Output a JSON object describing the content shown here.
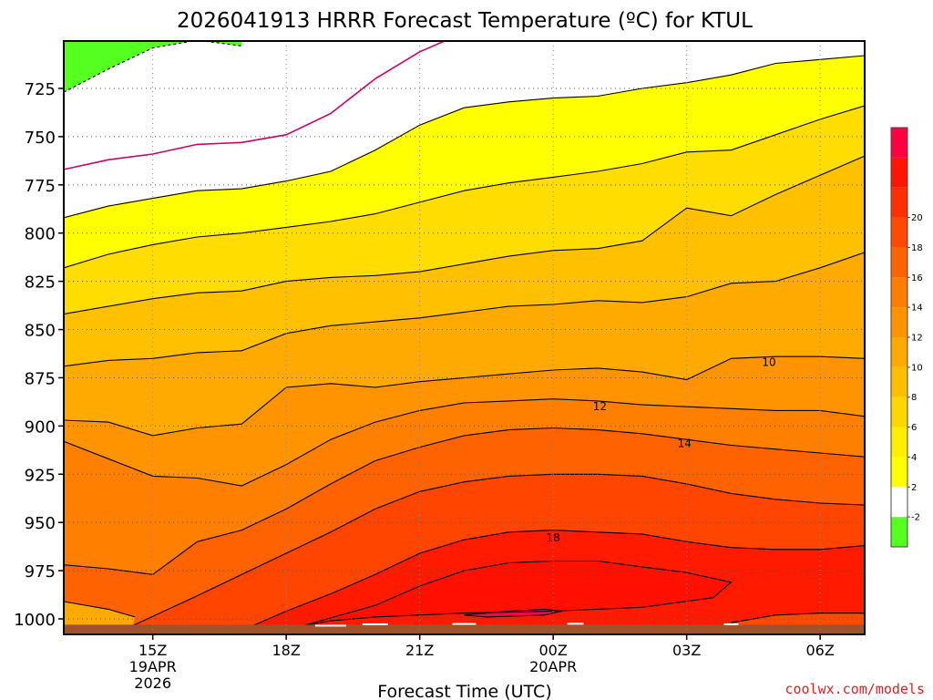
{
  "chart_data": {
    "type": "heatmap",
    "title": "2026041913 HRRR Forecast Temperature (ºC) for KTUL",
    "xlabel": "Forecast Time (UTC)",
    "ylabel": "",
    "credit": "coolwx.com/models",
    "y_axis_reversed": true,
    "x_ticks": [
      {
        "hour": 15,
        "lines": [
          "15Z",
          "19APR",
          "2026"
        ]
      },
      {
        "hour": 18,
        "lines": [
          "18Z"
        ]
      },
      {
        "hour": 21,
        "lines": [
          "21Z"
        ]
      },
      {
        "hour": 24,
        "lines": [
          "00Z",
          "20APR"
        ]
      },
      {
        "hour": 27,
        "lines": [
          "03Z"
        ]
      },
      {
        "hour": 30,
        "lines": [
          "06Z"
        ]
      }
    ],
    "y_ticks": [
      725,
      750,
      775,
      800,
      825,
      850,
      875,
      900,
      925,
      950,
      975,
      1000
    ],
    "grid": true,
    "colorbar": {
      "bands": [
        {
          "color": "#55ff20"
        },
        {
          "color": "#ffffff"
        },
        {
          "color": "#ffff00"
        },
        {
          "color": "#ffee00"
        },
        {
          "color": "#ffd700"
        },
        {
          "color": "#ffbf00"
        },
        {
          "color": "#ffaa00"
        },
        {
          "color": "#ff9400"
        },
        {
          "color": "#ff7d00"
        },
        {
          "color": "#ff6300"
        },
        {
          "color": "#ff4a00"
        },
        {
          "color": "#ff3000"
        },
        {
          "color": "#ff1500"
        },
        {
          "color": "#ff0040"
        }
      ],
      "labels": [
        "-2",
        "2",
        "4",
        "6",
        "8",
        "10",
        "12",
        "14",
        "16",
        "18",
        "20"
      ]
    },
    "isotherms": [
      {
        "temp": -2,
        "color": "#000000",
        "dashed": true,
        "points": [
          [
            13,
            727
          ],
          [
            14,
            715
          ],
          [
            15,
            704
          ],
          [
            16,
            700
          ],
          [
            17,
            703
          ]
        ]
      },
      {
        "temp": 0,
        "color": "#cc0066",
        "points": [
          [
            13,
            767
          ],
          [
            14,
            762
          ],
          [
            15,
            759
          ],
          [
            16,
            754
          ],
          [
            17,
            753
          ],
          [
            18,
            749
          ],
          [
            19,
            738
          ],
          [
            20,
            720
          ],
          [
            21,
            706
          ],
          [
            22,
            696
          ],
          [
            23,
            690
          ],
          [
            24,
            689
          ]
        ]
      },
      {
        "temp": 2,
        "color": "#000000",
        "points": [
          [
            13,
            792
          ],
          [
            14,
            786
          ],
          [
            15,
            782
          ],
          [
            16,
            778
          ],
          [
            17,
            777
          ],
          [
            18,
            773
          ],
          [
            19,
            768
          ],
          [
            20,
            757
          ],
          [
            21,
            744
          ],
          [
            22,
            735
          ],
          [
            23,
            732
          ],
          [
            24,
            730
          ],
          [
            25,
            729
          ],
          [
            26,
            725
          ],
          [
            27,
            722
          ],
          [
            28,
            718
          ],
          [
            29,
            712
          ],
          [
            30,
            710
          ],
          [
            31,
            708
          ]
        ]
      },
      {
        "temp": 4,
        "color": "#000000",
        "points": [
          [
            13,
            818
          ],
          [
            14,
            811
          ],
          [
            15,
            806
          ],
          [
            16,
            802
          ],
          [
            17,
            800
          ],
          [
            18,
            797
          ],
          [
            19,
            794
          ],
          [
            20,
            790
          ],
          [
            21,
            784
          ],
          [
            22,
            778
          ],
          [
            23,
            774
          ],
          [
            24,
            771
          ],
          [
            25,
            768
          ],
          [
            26,
            764
          ],
          [
            27,
            758
          ],
          [
            28,
            757
          ],
          [
            29,
            749
          ],
          [
            30,
            741
          ],
          [
            31,
            734
          ]
        ]
      },
      {
        "temp": 6,
        "color": "#000000",
        "points": [
          [
            13,
            842
          ],
          [
            14,
            838
          ],
          [
            15,
            834
          ],
          [
            16,
            831
          ],
          [
            17,
            830
          ],
          [
            18,
            825
          ],
          [
            19,
            823
          ],
          [
            20,
            822
          ],
          [
            21,
            820
          ],
          [
            22,
            816
          ],
          [
            23,
            812
          ],
          [
            24,
            809
          ],
          [
            25,
            808
          ],
          [
            26,
            804
          ],
          [
            27,
            787
          ],
          [
            28,
            791
          ],
          [
            29,
            780
          ],
          [
            30,
            770
          ],
          [
            31,
            760
          ]
        ]
      },
      {
        "temp": 8,
        "color": "#000000",
        "points": [
          [
            13,
            869
          ],
          [
            14,
            866
          ],
          [
            15,
            865
          ],
          [
            16,
            862
          ],
          [
            17,
            861
          ],
          [
            18,
            852
          ],
          [
            19,
            848
          ],
          [
            20,
            846
          ],
          [
            21,
            844
          ],
          [
            22,
            841
          ],
          [
            23,
            838
          ],
          [
            24,
            837
          ],
          [
            25,
            835
          ],
          [
            26,
            836
          ],
          [
            27,
            833
          ],
          [
            28,
            826
          ],
          [
            29,
            825
          ],
          [
            30,
            818
          ],
          [
            31,
            810
          ]
        ]
      },
      {
        "temp": 10,
        "color": "#000000",
        "points": [
          [
            13,
            897
          ],
          [
            14,
            898
          ],
          [
            15,
            905
          ],
          [
            16,
            901
          ],
          [
            17,
            899
          ],
          [
            18,
            880
          ],
          [
            19,
            878
          ],
          [
            20,
            880
          ],
          [
            21,
            877
          ],
          [
            22,
            875
          ],
          [
            23,
            873
          ],
          [
            24,
            871
          ],
          [
            25,
            870
          ],
          [
            26,
            872
          ],
          [
            27,
            876
          ],
          [
            28,
            865
          ],
          [
            29,
            864
          ],
          [
            30,
            864
          ],
          [
            31,
            865
          ]
        ]
      },
      {
        "temp": 12,
        "color": "#000000",
        "points": [
          [
            13,
            908
          ],
          [
            14,
            917
          ],
          [
            15,
            926
          ],
          [
            16,
            927
          ],
          [
            17,
            931
          ],
          [
            18,
            920
          ],
          [
            19,
            907
          ],
          [
            20,
            898
          ],
          [
            21,
            892
          ],
          [
            22,
            888
          ],
          [
            23,
            887
          ],
          [
            24,
            886
          ],
          [
            25,
            887
          ],
          [
            26,
            889
          ],
          [
            27,
            890
          ],
          [
            28,
            891
          ],
          [
            29,
            892
          ],
          [
            30,
            892
          ],
          [
            31,
            895
          ]
        ]
      },
      {
        "temp": 14,
        "color": "#000000",
        "points": [
          [
            13,
            972
          ],
          [
            14,
            974
          ],
          [
            15,
            977
          ],
          [
            16,
            960
          ],
          [
            17,
            954
          ],
          [
            18,
            943
          ],
          [
            19,
            930
          ],
          [
            20,
            918
          ],
          [
            21,
            911
          ],
          [
            22,
            905
          ],
          [
            23,
            902
          ],
          [
            24,
            901
          ],
          [
            25,
            902
          ],
          [
            26,
            904
          ],
          [
            27,
            907
          ],
          [
            28,
            910
          ],
          [
            29,
            912
          ],
          [
            30,
            914
          ],
          [
            31,
            916
          ]
        ]
      },
      {
        "temp": 16,
        "color": "#000000",
        "points": [
          [
            14.5,
            1004
          ],
          [
            16,
            988
          ],
          [
            17,
            977
          ],
          [
            18,
            966
          ],
          [
            19,
            955
          ],
          [
            20,
            943
          ],
          [
            21,
            934
          ],
          [
            22,
            929
          ],
          [
            23,
            926
          ],
          [
            24,
            925
          ],
          [
            25,
            925
          ],
          [
            26,
            926
          ],
          [
            27,
            930
          ],
          [
            28,
            935
          ],
          [
            29,
            938
          ],
          [
            30,
            940
          ],
          [
            31,
            941
          ]
        ]
      },
      {
        "temp": 18,
        "color": "#000000",
        "points": [
          [
            17.2,
            1004
          ],
          [
            18,
            996
          ],
          [
            19,
            987
          ],
          [
            20,
            977
          ],
          [
            21,
            966
          ],
          [
            22,
            959
          ],
          [
            23,
            955
          ],
          [
            24,
            954
          ],
          [
            25,
            955
          ],
          [
            26,
            956
          ],
          [
            27,
            960
          ],
          [
            28,
            963
          ],
          [
            29,
            964
          ],
          [
            30,
            964
          ],
          [
            31,
            962
          ]
        ]
      },
      {
        "temp": 20,
        "color": "#000000",
        "closed": true,
        "points": [
          [
            18.3,
            1004
          ],
          [
            20,
            993
          ],
          [
            21,
            983
          ],
          [
            22,
            975
          ],
          [
            23,
            971
          ],
          [
            24,
            970
          ],
          [
            25,
            970
          ],
          [
            26,
            973
          ],
          [
            27,
            976
          ],
          [
            28,
            981
          ],
          [
            27.6,
            989
          ],
          [
            26,
            994
          ],
          [
            24,
            996
          ],
          [
            22,
            997
          ],
          [
            20,
            999
          ],
          [
            19,
            1001
          ]
        ]
      },
      {
        "temp": 22,
        "color": "#000000",
        "closed": true,
        "points": [
          [
            22,
            998
          ],
          [
            23,
            996
          ],
          [
            23.8,
            995
          ],
          [
            24.2,
            996
          ],
          [
            23.8,
            998
          ],
          [
            22.5,
            999
          ]
        ]
      },
      {
        "temp": 24,
        "color": "#000000",
        "points": [
          [
            28,
            1002
          ],
          [
            29,
            998
          ],
          [
            30,
            997
          ],
          [
            31,
            997
          ]
        ]
      }
    ],
    "contour_labels": [
      {
        "text": "10",
        "x": 28.85,
        "y": 867
      },
      {
        "text": "12",
        "x": 25.05,
        "y": 890
      },
      {
        "text": "14",
        "x": 26.95,
        "y": 909
      },
      {
        "text": "18",
        "x": 24.0,
        "y": 958
      }
    ],
    "ground_color": "#a0522d",
    "hours_range": [
      13,
      31
    ],
    "pressure_range": [
      700,
      1008
    ]
  }
}
